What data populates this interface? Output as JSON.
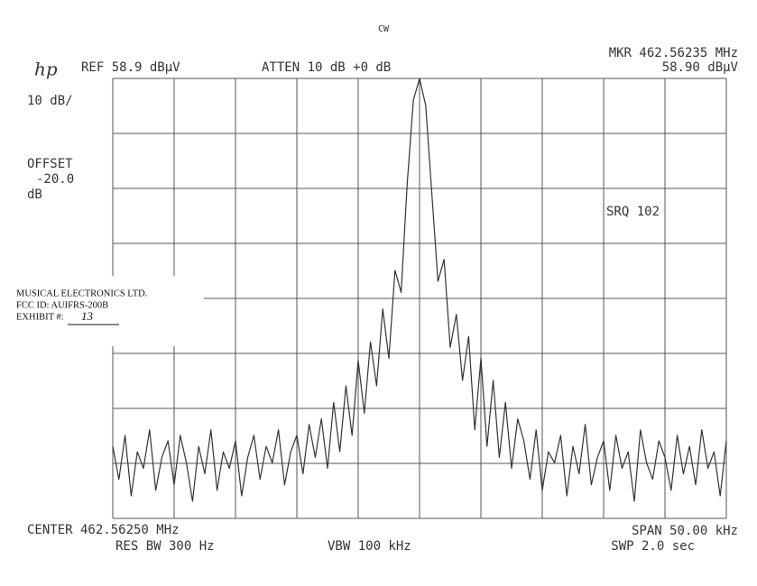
{
  "chart_data": {
    "type": "line",
    "title": "CW",
    "annotations": {
      "logo": "hp",
      "ref": "REF 58.9 dBµV",
      "atten": "ATTEN 10 dB +0 dB",
      "marker_freq": "MKR 462.56235 MHz",
      "marker_level": "58.90 dBµV",
      "scale": "10 dB/",
      "offset": "OFFSET",
      "offset_value": "-20.0",
      "offset_unit": "dB",
      "srq": "SRQ 102",
      "center": "CENTER 462.56250 MHz",
      "span": "SPAN 50.00 kHz",
      "res_bw": "RES BW 300 Hz",
      "vbw": "VBW 100 kHz",
      "sweep": "SWP 2.0 sec"
    },
    "stamp": {
      "company": "MUSICAL ELECTRONICS LTD.",
      "fcc_id": "FCC ID: AUIFRS-200B",
      "exhibit": "EXHIBIT #:",
      "exhibit_number": "13"
    },
    "xlim": [
      462.5375,
      462.5875
    ],
    "ylim": [
      -21.1,
      58.9
    ],
    "xticks": [
      462.5375,
      462.5425,
      462.5475,
      462.5525,
      462.5575,
      462.5625,
      462.5675,
      462.5725,
      462.5775,
      462.5825,
      462.5875
    ],
    "yticks": [
      58.9,
      48.9,
      38.9,
      28.9,
      18.9,
      8.9,
      -1.1,
      -11.1,
      -21.1
    ],
    "grid": true,
    "series": [
      {
        "color": "#333333",
        "x": [
          462.5375,
          462.538,
          462.5385,
          462.539,
          462.5395,
          462.54,
          462.5405,
          462.541,
          462.5415,
          462.542,
          462.5425,
          462.543,
          462.5435,
          462.544,
          462.5445,
          462.545,
          462.5455,
          462.546,
          462.5465,
          462.547,
          462.5475,
          462.548,
          462.5485,
          462.549,
          462.5495,
          462.55,
          462.5505,
          462.551,
          462.5515,
          462.552,
          462.5525,
          462.553,
          462.5535,
          462.554,
          462.5545,
          462.555,
          462.5555,
          462.556,
          462.5565,
          462.557,
          462.5575,
          462.558,
          462.5585,
          462.559,
          462.5595,
          462.56,
          462.5605,
          462.561,
          462.5615,
          462.562,
          462.5625,
          462.563,
          462.5635,
          462.564,
          462.5645,
          462.565,
          462.5655,
          462.566,
          462.5665,
          462.567,
          462.5675,
          462.568,
          462.5685,
          462.569,
          462.5695,
          462.57,
          462.5705,
          462.571,
          462.5715,
          462.572,
          462.5725,
          462.573,
          462.5735,
          462.574,
          462.5745,
          462.575,
          462.5755,
          462.576,
          462.5765,
          462.577,
          462.5775,
          462.578,
          462.5785,
          462.579,
          462.5795,
          462.58,
          462.5805,
          462.581,
          462.5815,
          462.582,
          462.5825,
          462.583,
          462.5835,
          462.584,
          462.5845,
          462.585,
          462.5855,
          462.586,
          462.5865,
          462.587,
          462.5875
        ],
        "values": [
          -8,
          -14,
          -6,
          -17,
          -9,
          -12,
          -5,
          -16,
          -10,
          -7,
          -15,
          -6,
          -11,
          -18,
          -8,
          -13,
          -5,
          -16,
          -9,
          -12,
          -7,
          -17,
          -10,
          -6,
          -14,
          -8,
          -11,
          -5,
          -15,
          -9,
          -6,
          -13,
          -4,
          -10,
          -3,
          -12,
          0,
          -9,
          3,
          -6,
          7.6,
          -2,
          11,
          3,
          17,
          8,
          24,
          20,
          40,
          55,
          58.9,
          54,
          38,
          22,
          26,
          10,
          16,
          4,
          12,
          -5,
          8,
          -8,
          4,
          -10,
          0,
          -12,
          -3,
          -7,
          -14,
          -5,
          -16,
          -9,
          -11,
          -6,
          -17,
          -8,
          -13,
          -4,
          -15,
          -10,
          -7,
          -16,
          -6,
          -12,
          -9,
          -18,
          -5,
          -11,
          -14,
          -7,
          -10,
          -16,
          -6,
          -13,
          -8,
          -15,
          -5,
          -12,
          -9,
          -17,
          -7
        ]
      }
    ]
  }
}
